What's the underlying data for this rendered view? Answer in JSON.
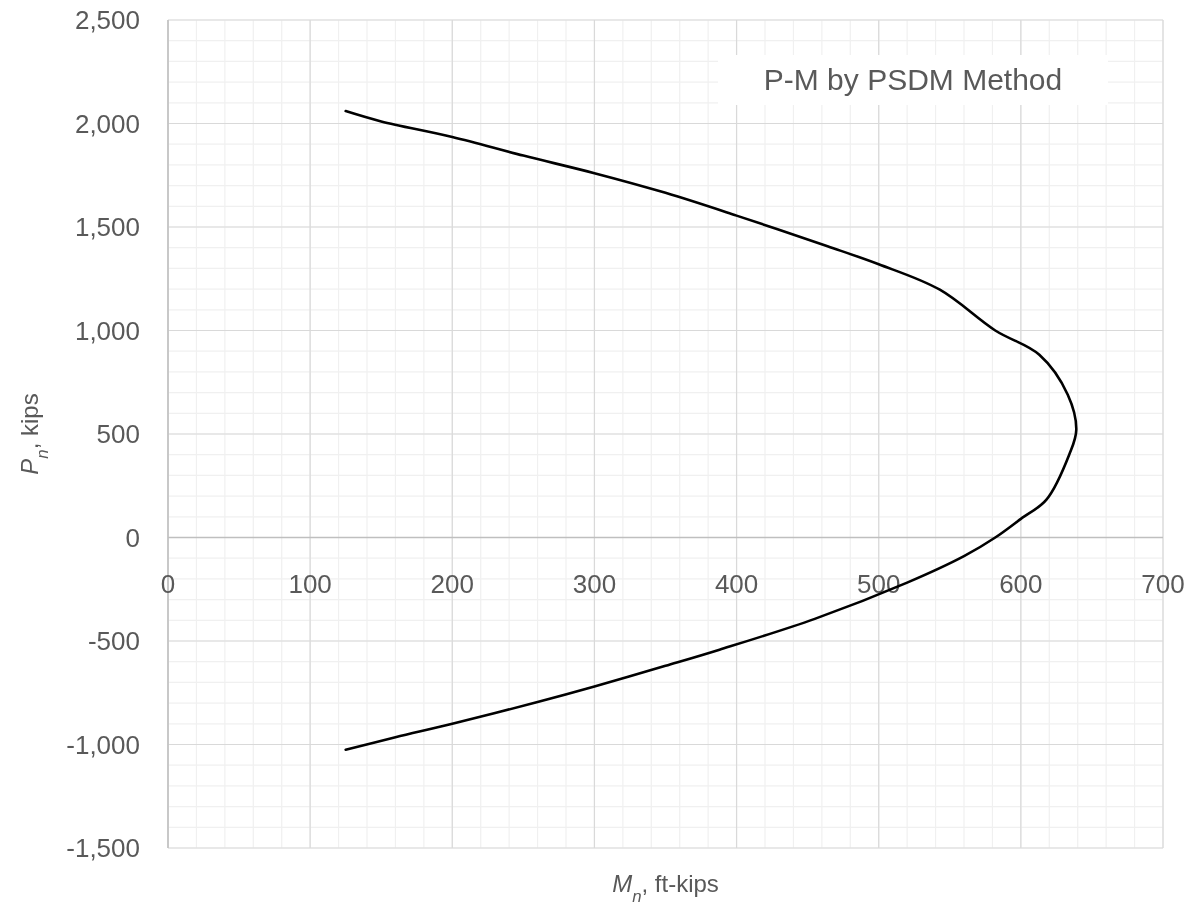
{
  "chart_data": {
    "type": "line",
    "title": "P-M by PSDM Method",
    "xlabel": "M$_{n}$, ft-kips",
    "ylabel": "P$_{n}$, kips",
    "xlim": [
      0,
      700
    ],
    "xticks": [
      0,
      100,
      200,
      300,
      400,
      500,
      600,
      700
    ],
    "ylim": [
      -1500,
      2500
    ],
    "yticks": [
      {
        "value": -1500,
        "label": "-1,500"
      },
      {
        "value": -1000,
        "label": "-1,000"
      },
      {
        "value": -500,
        "label": "-500"
      },
      0,
      {
        "value": 500,
        "label": "500"
      },
      {
        "value": 1000,
        "label": "1,000"
      },
      {
        "value": 1500,
        "label": "1,500"
      },
      {
        "value": 2000,
        "label": "2,000"
      },
      {
        "value": 2500,
        "label": "2,500"
      }
    ],
    "grid": true,
    "marker": "none",
    "line_style": "solid",
    "series": [
      {
        "color": "#000000",
        "x": [
          125,
          150,
          200,
          250,
          300,
          350,
          400,
          464,
          500,
          543,
          582,
          613,
          633,
          639,
          634,
          618,
          600,
          582,
          560,
          520,
          455,
          388,
          350,
          300,
          260,
          200,
          160,
          125
        ],
        "values": [
          2060,
          2010,
          1935,
          1845,
          1760,
          1665,
          1555,
          1407,
          1320,
          1197,
          1000,
          883,
          690,
          520,
          400,
          183,
          90,
          0,
          -90,
          -218,
          -393,
          -542,
          -620,
          -720,
          -795,
          -900,
          -965,
          -1025
        ]
      }
    ]
  }
}
